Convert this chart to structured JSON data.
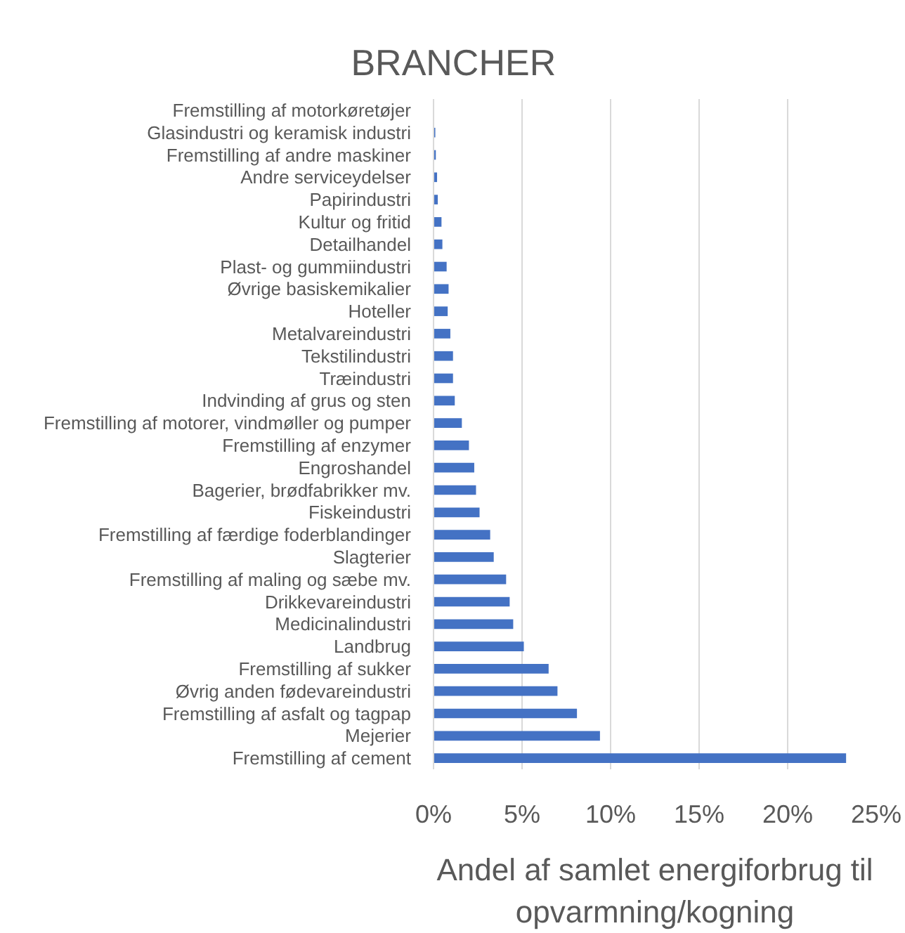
{
  "chart_data": {
    "type": "bar",
    "orientation": "horizontal",
    "title": "BRANCHER",
    "xlabel": "Andel af samlet energiforbrug til opvarmning/kogning",
    "categories": [
      "Fremstilling af motorkøretøjer",
      "Glasindustri og keramisk industri",
      "Fremstilling af andre maskiner",
      "Andre serviceydelser",
      "Papirindustri",
      "Kultur og fritid",
      "Detailhandel",
      "Plast- og gummiindustri",
      "Øvrige basiskemikalier",
      "Hoteller",
      "Metalvareindustri",
      "Tekstilindustri",
      "Træindustri",
      "Indvinding af grus og sten",
      "Fremstilling af motorer, vindmøller og pumper",
      "Fremstilling af enzymer",
      "Engroshandel",
      "Bagerier, brødfabrikker mv.",
      "Fiskeindustri",
      "Fremstilling af færdige foderblandinger",
      "Slagterier",
      "Fremstilling af maling og sæbe mv.",
      "Drikkevareindustri",
      "Medicinalindustri",
      "Landbrug",
      "Fremstilling af sukker",
      "Øvrig anden fødevareindustri",
      "Fremstilling af asfalt og tagpap",
      "Mejerier",
      "Fremstilling af cement"
    ],
    "values": [
      0,
      0.1,
      0.13,
      0.2,
      0.24,
      0.45,
      0.5,
      0.74,
      0.85,
      0.8,
      0.95,
      1.1,
      1.1,
      1.2,
      1.6,
      2.0,
      2.3,
      2.4,
      2.6,
      3.2,
      3.4,
      4.1,
      4.3,
      4.5,
      5.1,
      6.5,
      7.0,
      8.1,
      9.4,
      23.3
    ],
    "color": "#4472c4",
    "xlim": [
      0,
      25
    ],
    "xticks": [
      {
        "value": 0,
        "label": "0%"
      },
      {
        "value": 5,
        "label": "5%"
      },
      {
        "value": 10,
        "label": "10%"
      },
      {
        "value": 15,
        "label": "15%"
      },
      {
        "value": 20,
        "label": "20%"
      },
      {
        "value": 25,
        "label": "25%"
      }
    ],
    "grid": "x"
  }
}
